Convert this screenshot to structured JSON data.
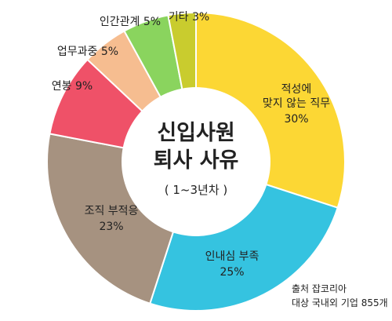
{
  "chart_data": {
    "type": "pie",
    "title": [
      "신입사원",
      "퇴사 사유"
    ],
    "subtitle": "( 1~3년차 )",
    "source": [
      "출처 잡코리아",
      "대상 국내외 기업 855개"
    ],
    "slices": [
      {
        "label": [
          "적성에",
          "맞지 않는 직무"
        ],
        "value": 30,
        "value_text": "30%",
        "color": "#FCD734"
      },
      {
        "label": [
          "인내심 부족"
        ],
        "value": 25,
        "value_text": "25%",
        "color": "#35C3E0"
      },
      {
        "label": [
          "조직 부적응"
        ],
        "value": 23,
        "value_text": "23%",
        "color": "#A69280"
      },
      {
        "label": [
          "연봉"
        ],
        "value": 9,
        "value_text": "9%",
        "color": "#EF5168"
      },
      {
        "label": [
          "업무과중"
        ],
        "value": 5,
        "value_text": "5%",
        "color": "#F6BD90"
      },
      {
        "label": [
          "인간관계"
        ],
        "value": 5,
        "value_text": "5%",
        "color": "#8AD45E"
      },
      {
        "label": [
          "기타"
        ],
        "value": 3,
        "value_text": "3%",
        "color": "#C9CC2E"
      }
    ]
  }
}
